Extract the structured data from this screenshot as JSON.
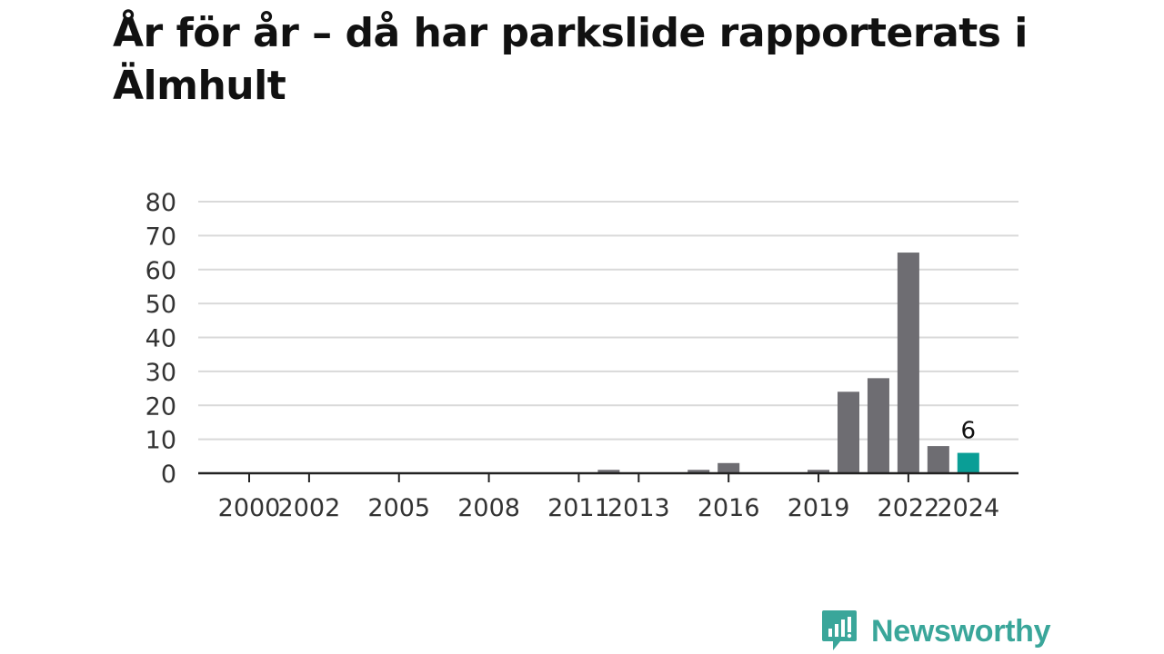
{
  "title": "År för år – då har parkslide rapporterats i Älmhult",
  "brand": {
    "name": "Newsworthy",
    "icon": "newsworthy-logo-icon",
    "color": "#3aa69a"
  },
  "colors": {
    "bar": "#6e6d72",
    "highlight": "#0a9e96",
    "grid": "#d9d9d9",
    "axis": "#222222"
  },
  "chart_data": {
    "type": "bar",
    "title": "År för år – då har parkslide rapporterats i Älmhult",
    "xlabel": "",
    "ylabel": "",
    "categories": [
      "2000",
      "2001",
      "2002",
      "2003",
      "2004",
      "2005",
      "2006",
      "2007",
      "2008",
      "2009",
      "2010",
      "2011",
      "2012",
      "2013",
      "2014",
      "2015",
      "2016",
      "2017",
      "2018",
      "2019",
      "2020",
      "2021",
      "2022",
      "2023",
      "2024"
    ],
    "values": [
      0,
      0,
      0,
      0,
      0,
      0,
      0,
      0,
      0,
      0,
      0,
      0,
      1,
      0,
      0,
      1,
      3,
      0,
      0,
      1,
      24,
      28,
      65,
      8,
      6
    ],
    "x_tick_labels": [
      "2000",
      "2002",
      "2005",
      "2008",
      "2011",
      "2013",
      "2016",
      "2019",
      "2022",
      "2024"
    ],
    "y_ticks": [
      0,
      10,
      20,
      30,
      40,
      50,
      60,
      70,
      80
    ],
    "ylim": [
      0,
      80
    ],
    "grid": true,
    "legend": "none",
    "highlight": {
      "category": "2024",
      "label": "6"
    }
  }
}
